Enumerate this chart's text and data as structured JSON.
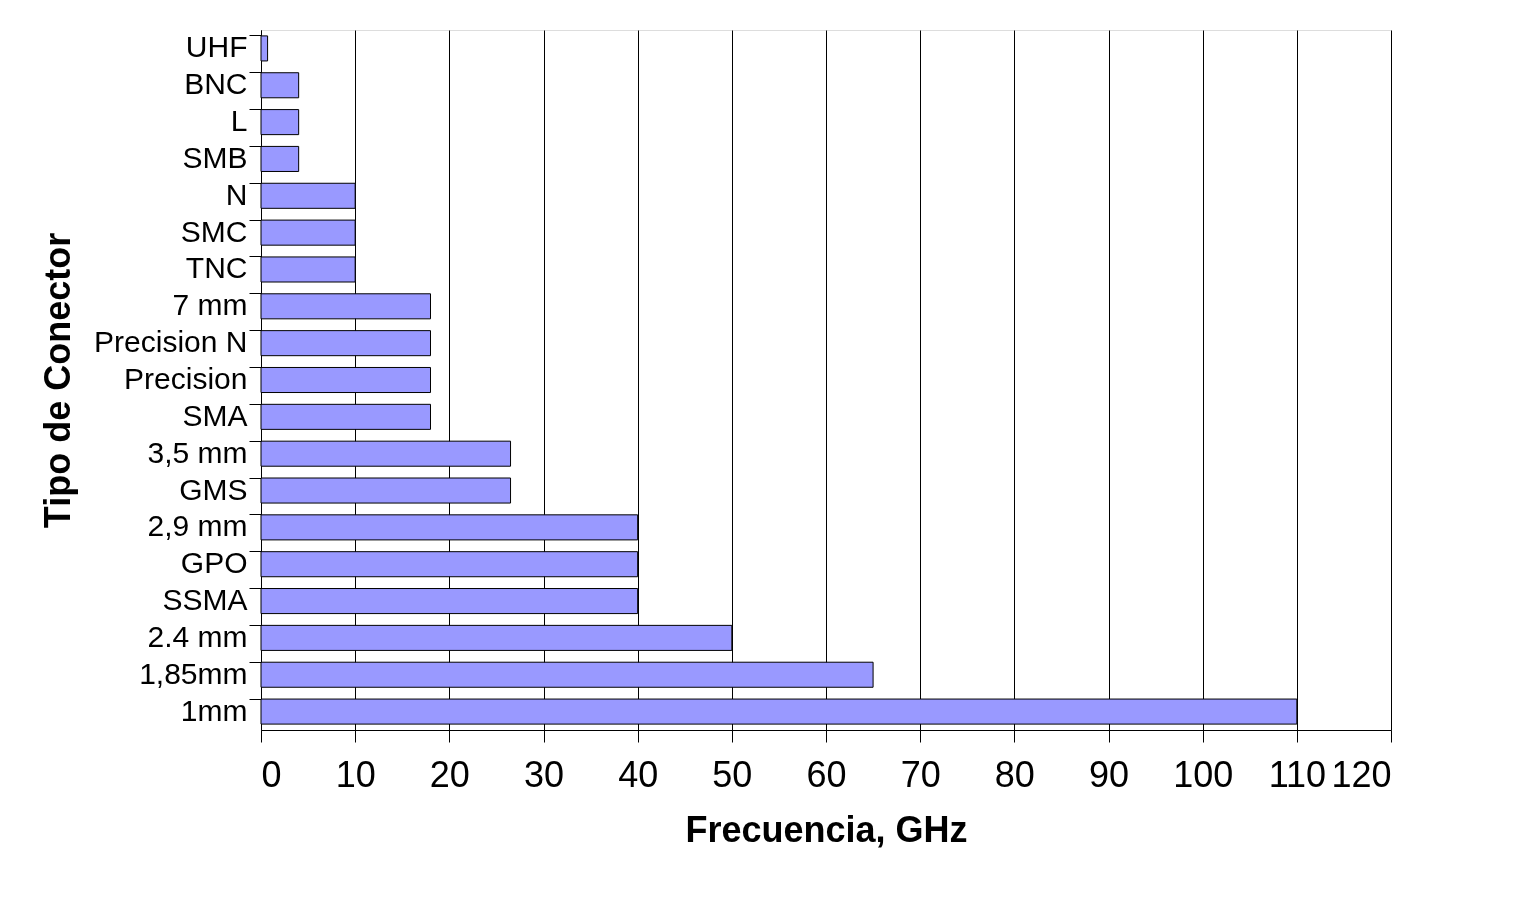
{
  "chart_data": {
    "type": "bar",
    "orientation": "horizontal",
    "xlabel": "Frecuencia, GHz",
    "ylabel": "Tipo de Conector",
    "categories": [
      "UHF",
      "BNC",
      "L",
      "SMB",
      "N",
      "SMC",
      "TNC",
      "7 mm",
      "Precision N",
      "Precision",
      "SMA",
      "3,5 mm",
      "GMS",
      "2,9 mm",
      "GPO",
      "SSMA",
      "2.4 mm",
      "1,85mm",
      "1mm"
    ],
    "values": [
      0.7,
      4,
      4,
      4,
      10,
      10,
      10,
      18,
      18,
      18,
      18,
      26.5,
      26.5,
      40,
      40,
      40,
      50,
      65,
      110
    ],
    "color": "#9999ff",
    "xlim": [
      0,
      120
    ],
    "xticks": [
      0,
      10,
      20,
      30,
      40,
      50,
      60,
      70,
      80,
      90,
      100,
      110,
      120
    ],
    "grid": "x"
  }
}
